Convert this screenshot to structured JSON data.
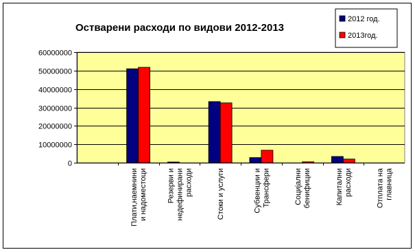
{
  "chart_data": {
    "type": "bar",
    "title": "Остварени расходи по видови 2012-2013",
    "xlabel": "",
    "ylabel": "",
    "ylim": [
      0,
      60000000
    ],
    "yticks": [
      0,
      10000000,
      20000000,
      30000000,
      40000000,
      50000000,
      60000000
    ],
    "grid": true,
    "legend_position": "top-right",
    "plot_background": "#FFFF99",
    "categories": [
      "",
      "Плати,наемнини и надоместоци",
      "Резерви и недефинирани расходи",
      "Стоки и услуги",
      "Субвенции и Трансфери",
      "Социјални бенифиции",
      "Капитални расходи",
      "Отплата на главница"
    ],
    "category_lines": [
      [],
      [
        "Плати,наемнини",
        "и надоместоци"
      ],
      [
        "Резерви и",
        "недефинирани",
        "расходи"
      ],
      [
        "Стоки и услуги"
      ],
      [
        "Субвенции и",
        "Трансфери"
      ],
      [
        "Социјални",
        "бенифиции"
      ],
      [
        "Капитални",
        "расходи"
      ],
      [
        "Отплата на",
        "главница"
      ]
    ],
    "series": [
      {
        "name": "2012 год.",
        "color": "#000080",
        "values": [
          0,
          51000000,
          400000,
          33200000,
          2800000,
          0,
          3400000,
          0
        ]
      },
      {
        "name": "2013год.",
        "color": "#FF0000",
        "values": [
          0,
          51800000,
          0,
          32500000,
          6800000,
          500000,
          2000000,
          0
        ]
      }
    ]
  }
}
